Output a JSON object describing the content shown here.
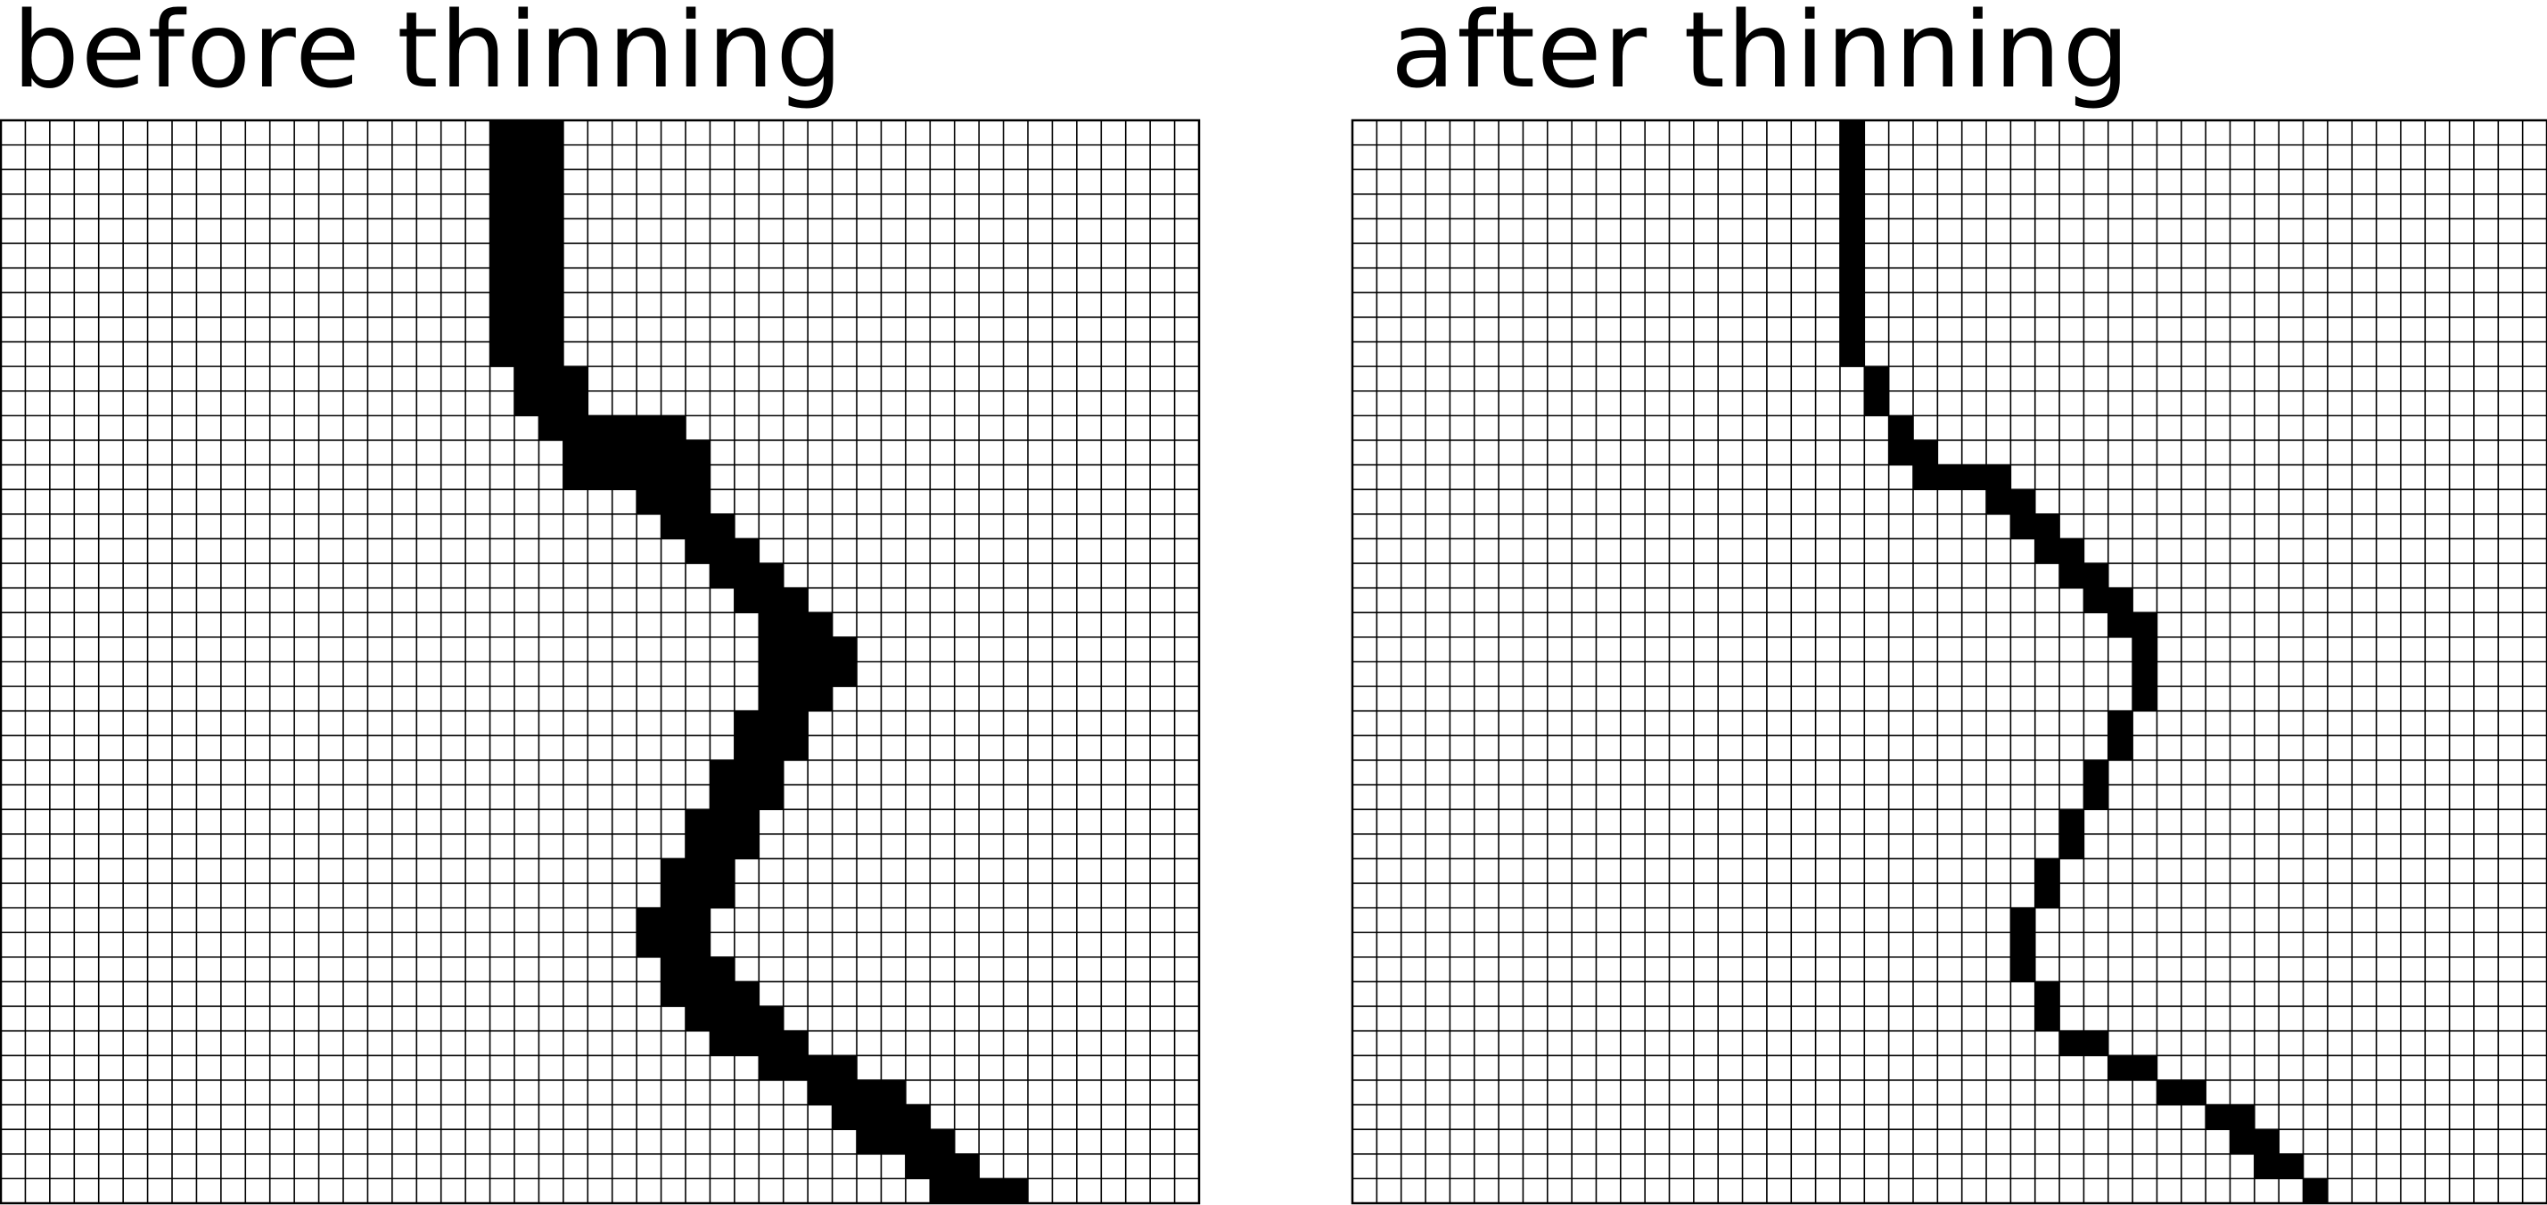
{
  "panels": [
    {
      "title": "before thinning",
      "grid": {
        "cols": 49,
        "rows": 44
      },
      "filled_rows": [
        [
          20,
          21,
          22
        ],
        [
          20,
          21,
          22
        ],
        [
          20,
          21,
          22
        ],
        [
          20,
          21,
          22
        ],
        [
          20,
          21,
          22
        ],
        [
          20,
          21,
          22
        ],
        [
          20,
          21,
          22
        ],
        [
          20,
          21,
          22
        ],
        [
          20,
          21,
          22
        ],
        [
          20,
          21,
          22
        ],
        [
          21,
          22,
          23
        ],
        [
          21,
          22,
          23
        ],
        [
          22,
          23,
          24,
          25,
          26,
          27
        ],
        [
          23,
          24,
          25,
          26,
          27,
          28
        ],
        [
          23,
          24,
          25,
          26,
          27,
          28
        ],
        [
          26,
          27,
          28
        ],
        [
          27,
          28,
          29
        ],
        [
          28,
          29,
          30
        ],
        [
          29,
          30,
          31
        ],
        [
          30,
          31,
          32
        ],
        [
          31,
          32,
          33
        ],
        [
          31,
          32,
          33,
          34
        ],
        [
          31,
          32,
          33,
          34
        ],
        [
          31,
          32,
          33
        ],
        [
          30,
          31,
          32
        ],
        [
          30,
          31,
          32
        ],
        [
          29,
          30,
          31
        ],
        [
          29,
          30,
          31
        ],
        [
          28,
          29,
          30
        ],
        [
          28,
          29,
          30
        ],
        [
          27,
          28,
          29
        ],
        [
          27,
          28,
          29
        ],
        [
          26,
          27,
          28
        ],
        [
          26,
          27,
          28
        ],
        [
          27,
          28,
          29
        ],
        [
          27,
          28,
          29,
          30
        ],
        [
          28,
          29,
          30,
          31
        ],
        [
          29,
          30,
          31,
          32
        ],
        [
          31,
          32,
          33,
          34
        ],
        [
          33,
          34,
          35,
          36
        ],
        [
          34,
          35,
          36,
          37
        ],
        [
          35,
          36,
          37,
          38
        ],
        [
          37,
          38,
          39
        ],
        [
          38,
          39,
          40,
          41
        ]
      ]
    },
    {
      "title": "after thinning",
      "grid": {
        "cols": 49,
        "rows": 44
      },
      "filled_rows": [
        [
          20
        ],
        [
          20
        ],
        [
          20
        ],
        [
          20
        ],
        [
          20
        ],
        [
          20
        ],
        [
          20
        ],
        [
          20
        ],
        [
          20
        ],
        [
          20
        ],
        [
          21
        ],
        [
          21
        ],
        [
          22
        ],
        [
          22,
          23
        ],
        [
          23,
          24,
          25,
          26
        ],
        [
          26,
          27
        ],
        [
          27,
          28
        ],
        [
          28,
          29
        ],
        [
          29,
          30
        ],
        [
          30,
          31
        ],
        [
          31,
          32
        ],
        [
          32
        ],
        [
          32
        ],
        [
          32
        ],
        [
          31
        ],
        [
          31
        ],
        [
          30
        ],
        [
          30
        ],
        [
          29
        ],
        [
          29
        ],
        [
          28
        ],
        [
          28
        ],
        [
          27
        ],
        [
          27
        ],
        [
          27
        ],
        [
          28
        ],
        [
          28
        ],
        [
          29,
          30
        ],
        [
          31,
          32
        ],
        [
          33,
          34
        ],
        [
          35,
          36
        ],
        [
          36,
          37
        ],
        [
          37,
          38
        ],
        [
          39
        ]
      ]
    }
  ],
  "colors": {
    "background": "#ffffff",
    "grid_line": "#000000",
    "filled_cell": "#000000"
  }
}
